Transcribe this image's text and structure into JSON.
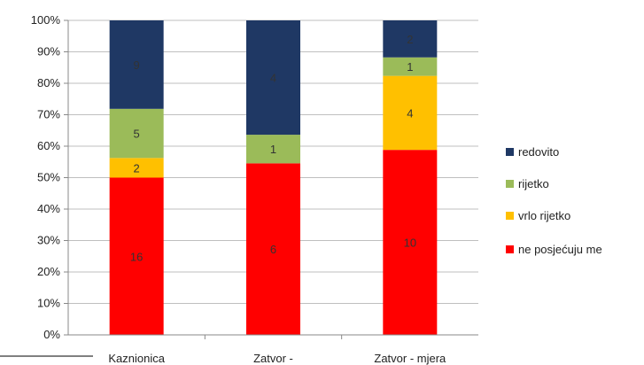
{
  "chart_data": {
    "type": "bar",
    "stacked": true,
    "normalized": true,
    "categories": [
      "Kaznionica",
      "Zatvor -",
      "Zatvor - mjera"
    ],
    "series": [
      {
        "name": "ne posjećuju me",
        "values": [
          16,
          6,
          10
        ],
        "color": "#ff0000"
      },
      {
        "name": "vrlo rijetko",
        "values": [
          2,
          0,
          4
        ],
        "color": "#ffc000"
      },
      {
        "name": "rijetko",
        "values": [
          5,
          1,
          1
        ],
        "color": "#9bbb59"
      },
      {
        "name": "redovito",
        "values": [
          9,
          4,
          2
        ],
        "color": "#1f3864"
      }
    ],
    "yticks": [
      "0%",
      "10%",
      "20%",
      "30%",
      "40%",
      "50%",
      "60%",
      "70%",
      "80%",
      "90%",
      "100%"
    ],
    "ylim": [
      0,
      100
    ],
    "grid": true,
    "legend_position": "right",
    "legend_order": [
      "redovito",
      "rijetko",
      "vrlo rijetko",
      "ne posjećuju me"
    ]
  }
}
